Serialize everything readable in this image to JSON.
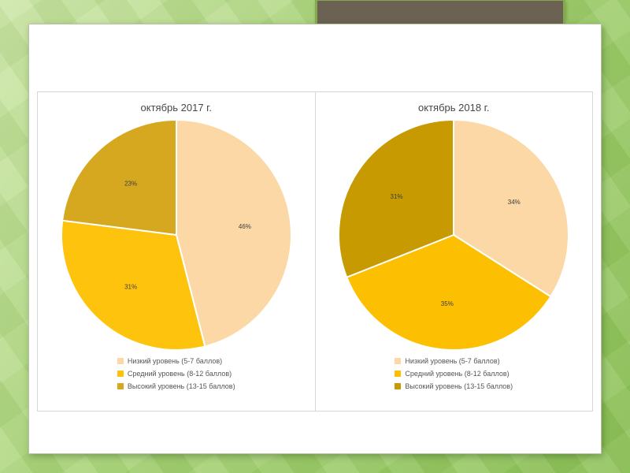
{
  "slide": {
    "background_accent": "#8dc158",
    "surface_color": "#ffffff",
    "title_block_color": "#6b6254",
    "title_block_border_color": "#87a94e"
  },
  "chart_data": [
    {
      "type": "pie",
      "title": "октябрь 2017 г.",
      "labels": [
        "Низкий уровень (5-7 баллов)",
        "Средний уровень (8-12 баллов)",
        "Высокий уровень (13-15 баллов)"
      ],
      "values": [
        46,
        31,
        23
      ],
      "data_labels": [
        "46%",
        "31%",
        "23%"
      ],
      "colors": [
        "#FBD8A5",
        "#FEC40D",
        "#D5A81F"
      ],
      "legend_position": "bottom",
      "start_angle_deg": 0,
      "direction": "clockwise"
    },
    {
      "type": "pie",
      "title": "октябрь 2018 г.",
      "labels": [
        "Низкий уровень (5-7 баллов)",
        "Средний уровень (8-12 баллов)",
        "Высокий уровень (13-15 баллов)"
      ],
      "values": [
        34,
        35,
        31
      ],
      "data_labels": [
        "34%",
        "35%",
        "31%"
      ],
      "colors": [
        "#FBD8A5",
        "#FDBF01",
        "#C79A02"
      ],
      "legend_position": "bottom",
      "start_angle_deg": 0,
      "direction": "clockwise"
    }
  ]
}
